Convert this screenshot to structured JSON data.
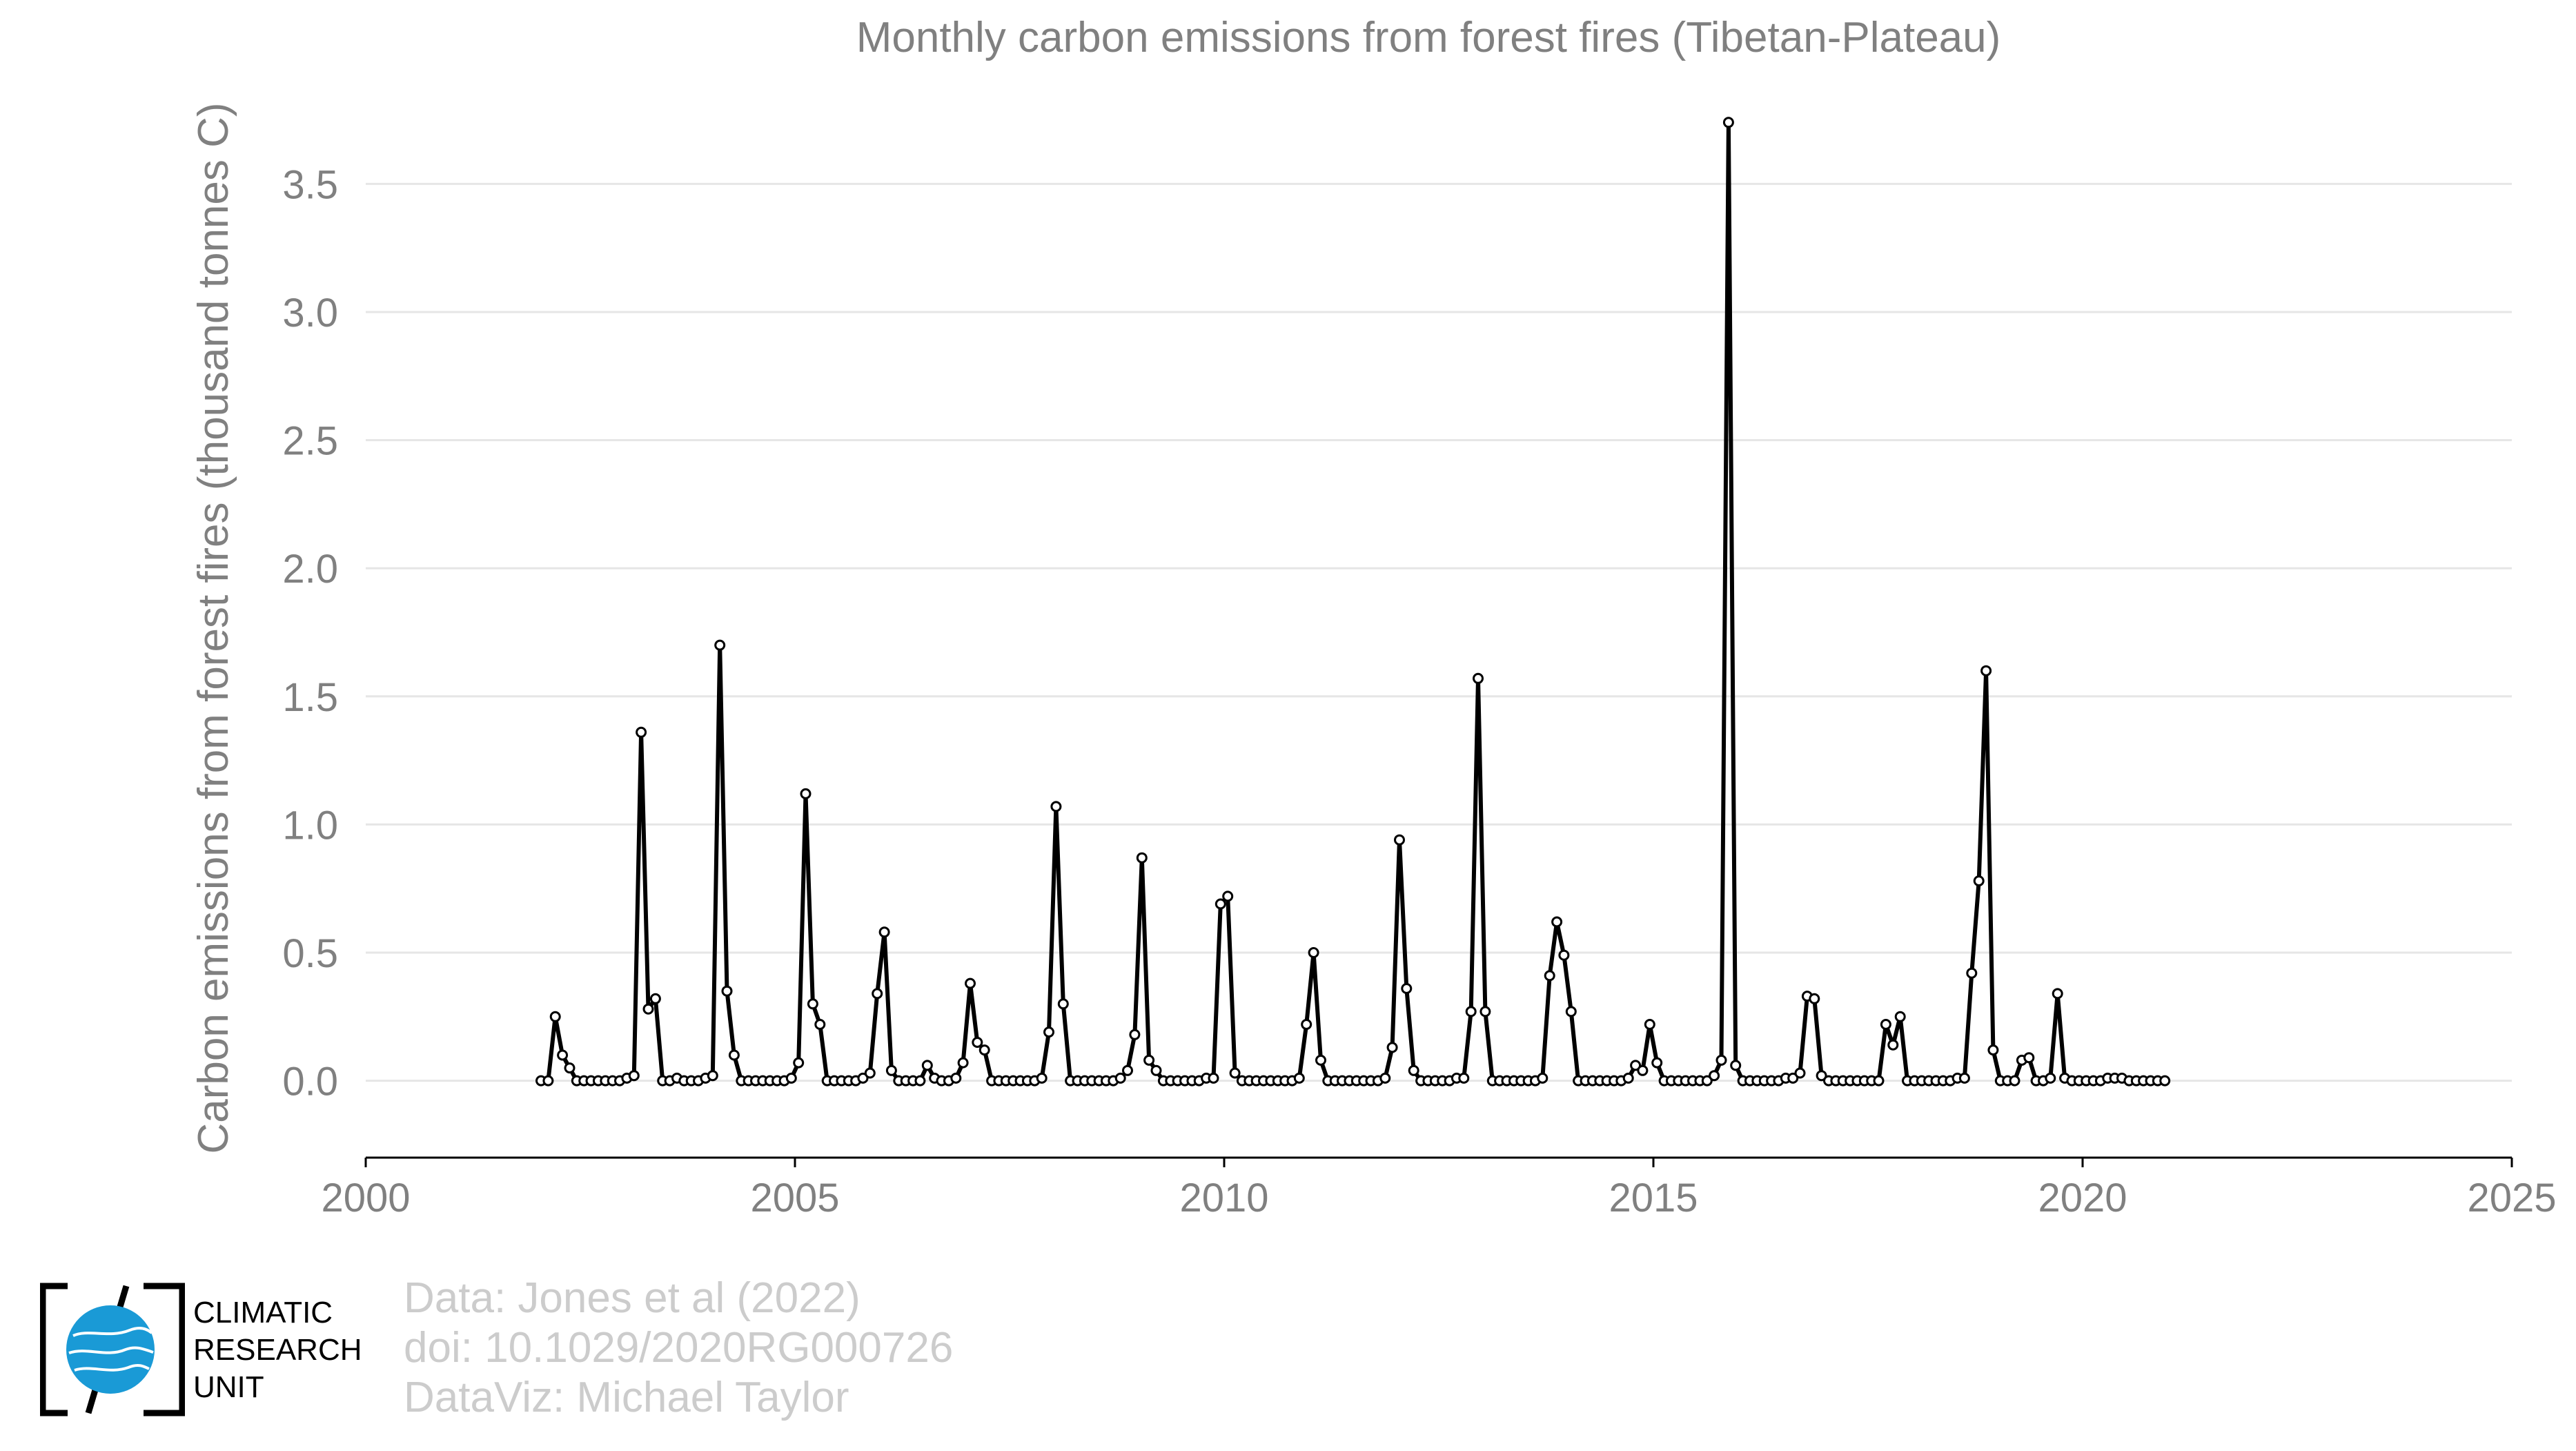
{
  "chart_data": {
    "type": "line",
    "title": "Monthly carbon emissions from forest fires (Tibetan-Plateau)",
    "xlabel": "",
    "ylabel": "Carbon emissions from forest fires (thousand tonnes C)",
    "xlim": [
      2000,
      2025
    ],
    "ylim": [
      -0.3,
      3.8
    ],
    "xticks": [
      2000,
      2005,
      2010,
      2015,
      2020,
      2025
    ],
    "yticks": [
      0.0,
      0.5,
      1.0,
      1.5,
      2.0,
      2.5,
      3.0,
      3.5
    ],
    "xtick_labels": [
      "2000",
      "2005",
      "2010",
      "2015",
      "2020",
      "2025"
    ],
    "ytick_labels": [
      "0.0",
      "0.5",
      "1.0",
      "1.5",
      "2.0",
      "2.5",
      "3.0",
      "3.5"
    ],
    "grid": "horizontal",
    "legend": "none",
    "line_color": "#000000",
    "marker_fill": "#ffffff",
    "series": [
      {
        "x": [
          2002.0417,
          2002.125,
          2002.2083,
          2002.2917,
          2002.375,
          2002.4583,
          2002.5417,
          2002.625,
          2002.7083,
          2002.7917,
          2002.875,
          2002.9583,
          2003.0417,
          2003.125,
          2003.2083,
          2003.2917,
          2003.375,
          2003.4583,
          2003.5417,
          2003.625,
          2003.7083,
          2003.7917,
          2003.875,
          2003.9583,
          2004.0417,
          2004.125,
          2004.2083,
          2004.2917,
          2004.375,
          2004.4583,
          2004.5417,
          2004.625,
          2004.7083,
          2004.7917,
          2004.875,
          2004.9583,
          2005.0417,
          2005.125,
          2005.2083,
          2005.2917,
          2005.375,
          2005.4583,
          2005.5417,
          2005.625,
          2005.7083,
          2005.7917,
          2005.875,
          2005.9583,
          2006.0417,
          2006.125,
          2006.2083,
          2006.2917,
          2006.375,
          2006.4583,
          2006.5417,
          2006.625,
          2006.7083,
          2006.7917,
          2006.875,
          2006.9583,
          2007.0417,
          2007.125,
          2007.2083,
          2007.2917,
          2007.375,
          2007.4583,
          2007.5417,
          2007.625,
          2007.7083,
          2007.7917,
          2007.875,
          2007.9583,
          2008.0417,
          2008.125,
          2008.2083,
          2008.2917,
          2008.375,
          2008.4583,
          2008.5417,
          2008.625,
          2008.7083,
          2008.7917,
          2008.875,
          2008.9583,
          2009.0417,
          2009.125,
          2009.2083,
          2009.2917,
          2009.375,
          2009.4583,
          2009.5417,
          2009.625,
          2009.7083,
          2009.7917,
          2009.875,
          2009.9583,
          2010.0417,
          2010.125,
          2010.2083,
          2010.2917,
          2010.375,
          2010.4583,
          2010.5417,
          2010.625,
          2010.7083,
          2010.7917,
          2010.875,
          2010.9583,
          2011.0417,
          2011.125,
          2011.2083,
          2011.2917,
          2011.375,
          2011.4583,
          2011.5417,
          2011.625,
          2011.7083,
          2011.7917,
          2011.875,
          2011.9583,
          2012.0417,
          2012.125,
          2012.2083,
          2012.2917,
          2012.375,
          2012.4583,
          2012.5417,
          2012.625,
          2012.7083,
          2012.7917,
          2012.875,
          2012.9583,
          2013.0417,
          2013.125,
          2013.2083,
          2013.2917,
          2013.375,
          2013.4583,
          2013.5417,
          2013.625,
          2013.7083,
          2013.7917,
          2013.875,
          2013.9583,
          2014.0417,
          2014.125,
          2014.2083,
          2014.2917,
          2014.375,
          2014.4583,
          2014.5417,
          2014.625,
          2014.7083,
          2014.7917,
          2014.875,
          2014.9583,
          2015.0417,
          2015.125,
          2015.2083,
          2015.2917,
          2015.375,
          2015.4583,
          2015.5417,
          2015.625,
          2015.7083,
          2015.7917,
          2015.875,
          2015.9583,
          2016.0417,
          2016.125,
          2016.2083,
          2016.2917,
          2016.375,
          2016.4583,
          2016.5417,
          2016.625,
          2016.7083,
          2016.7917,
          2016.875,
          2016.9583,
          2017.0417,
          2017.125,
          2017.2083,
          2017.2917,
          2017.375,
          2017.4583,
          2017.5417,
          2017.625,
          2017.7083,
          2017.7917,
          2017.875,
          2017.9583,
          2018.0417,
          2018.125,
          2018.2083,
          2018.2917,
          2018.375,
          2018.4583,
          2018.5417,
          2018.625,
          2018.7083,
          2018.7917,
          2018.875,
          2018.9583,
          2019.0417,
          2019.125,
          2019.2083,
          2019.2917,
          2019.375,
          2019.4583,
          2019.5417,
          2019.625,
          2019.7083,
          2019.7917,
          2019.875,
          2019.9583,
          2020.0417,
          2020.125,
          2020.2083,
          2020.2917,
          2020.375,
          2020.4583,
          2020.5417,
          2020.625,
          2020.7083,
          2020.7917,
          2020.875,
          2020.9583
        ],
        "y": [
          0,
          0,
          0.25,
          0.1,
          0.05,
          0,
          0,
          0,
          0,
          0,
          0,
          0,
          0.01,
          0.02,
          1.36,
          0.28,
          0.32,
          0,
          0,
          0.01,
          0,
          0,
          0,
          0.01,
          0.02,
          1.7,
          0.35,
          0.1,
          0,
          0,
          0,
          0,
          0,
          0,
          0,
          0.01,
          0.07,
          1.12,
          0.3,
          0.22,
          0,
          0,
          0,
          0,
          0,
          0.01,
          0.03,
          0.34,
          0.58,
          0.04,
          0,
          0,
          0,
          0,
          0.06,
          0.01,
          0,
          0,
          0.01,
          0.07,
          0.38,
          0.15,
          0.12,
          0,
          0,
          0,
          0,
          0,
          0,
          0,
          0.01,
          0.19,
          1.07,
          0.3,
          0,
          0,
          0,
          0,
          0,
          0,
          0,
          0.01,
          0.04,
          0.18,
          0.87,
          0.08,
          0.04,
          0,
          0,
          0,
          0,
          0,
          0,
          0.01,
          0.01,
          0.69,
          0.72,
          0.03,
          0,
          0,
          0,
          0,
          0,
          0,
          0,
          0,
          0.01,
          0.22,
          0.5,
          0.08,
          0,
          0,
          0,
          0,
          0,
          0,
          0,
          0,
          0.01,
          0.13,
          0.94,
          0.36,
          0.04,
          0,
          0,
          0,
          0,
          0,
          0.01,
          0.01,
          0.27,
          1.57,
          0.27,
          0,
          0,
          0,
          0,
          0,
          0,
          0,
          0.01,
          0.41,
          0.62,
          0.49,
          0.27,
          0,
          0,
          0,
          0,
          0,
          0,
          0,
          0.01,
          0.06,
          0.04,
          0.22,
          0.07,
          0,
          0,
          0,
          0,
          0,
          0,
          0,
          0.02,
          0.08,
          3.74,
          0.06,
          0,
          0,
          0,
          0,
          0,
          0,
          0.01,
          0.01,
          0.03,
          0.33,
          0.32,
          0.02,
          0,
          0,
          0,
          0,
          0,
          0,
          0,
          0,
          0.22,
          0.14,
          0.25,
          0,
          0,
          0,
          0,
          0,
          0,
          0,
          0.01,
          0.01,
          0.42,
          0.78,
          1.6,
          0.12,
          0,
          0,
          0,
          0.08,
          0.09,
          0,
          0,
          0.01,
          0.34,
          0.01,
          0,
          0,
          0,
          0,
          0,
          0.01,
          0.01,
          0.01,
          0,
          0,
          0,
          0,
          0,
          0
        ]
      }
    ]
  },
  "footer": {
    "logo_text": [
      "CLIMATIC",
      "RESEARCH",
      "UNIT"
    ],
    "credits": [
      "Data: Jones et al (2022)",
      "doi: 10.1029/2020RG000726",
      "DataViz: Michael Taylor"
    ]
  }
}
